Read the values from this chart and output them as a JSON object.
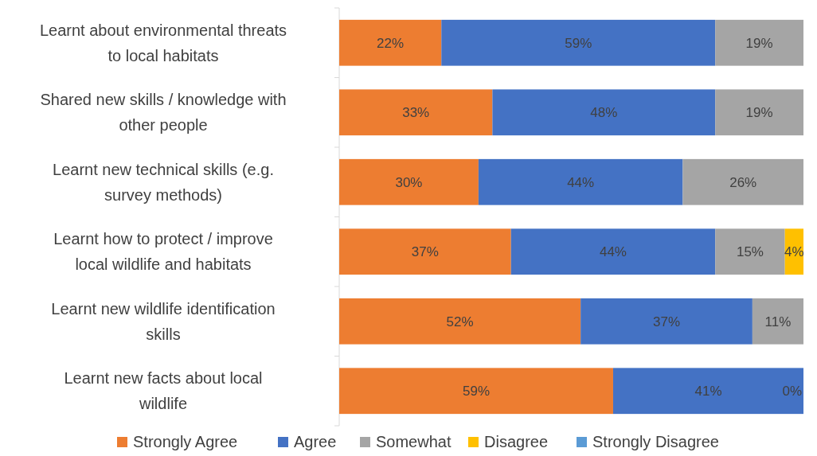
{
  "chart_data": {
    "type": "bar",
    "orientation": "horizontal",
    "stacked": true,
    "legend": "bottom",
    "tick_labels": "y",
    "xlim": [
      0,
      100
    ],
    "categories": [
      "Learnt about environmental threats to local habitats",
      "Shared new skills / knowledge with other people",
      "Learnt new technical skills (e.g. survey methods)",
      "Learnt how to protect / improve local wildlife and habitats",
      "Learnt new wildlife identification skills",
      "Learnt new facts about local wildlife"
    ],
    "series": [
      {
        "name": "Strongly Agree",
        "color": "#ed7d31",
        "values": [
          22,
          33,
          30,
          37,
          52,
          59
        ],
        "value_labels": [
          "22%",
          "33%",
          "30%",
          "37%",
          "52%",
          "59%"
        ]
      },
      {
        "name": "Agree",
        "color": "#4472c4",
        "values": [
          59,
          48,
          44,
          44,
          37,
          41
        ],
        "value_labels": [
          "59%",
          "48%",
          "44%",
          "44%",
          "37%",
          "41%"
        ]
      },
      {
        "name": "Somewhat",
        "color": "#a5a5a5",
        "values": [
          19,
          19,
          26,
          15,
          11,
          0
        ],
        "value_labels": [
          "19%",
          "19%",
          "26%",
          "15%",
          "11%",
          "0%"
        ]
      },
      {
        "name": "Disagree",
        "color": "#ffc000",
        "values": [
          null,
          null,
          null,
          4,
          null,
          null
        ],
        "value_labels": [
          null,
          null,
          null,
          "4%",
          null,
          null
        ]
      },
      {
        "name": "Strongly Disagree",
        "color": "#5b9bd5",
        "values": [
          null,
          null,
          null,
          null,
          null,
          null
        ],
        "value_labels": [
          null,
          null,
          null,
          null,
          null,
          null
        ]
      }
    ]
  }
}
